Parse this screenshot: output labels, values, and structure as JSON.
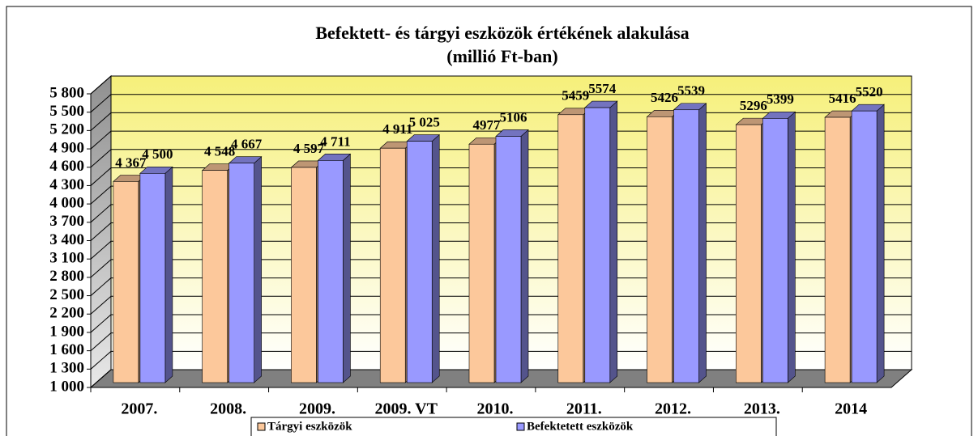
{
  "chart_data": {
    "type": "bar3d",
    "title": "Befektett- és tárgyi eszközök értékének alakulása",
    "subtitle": "(millió  Ft-ban)",
    "categories": [
      "2007.",
      "2008.",
      "2009.",
      "2009. VT",
      "2010.",
      "2011.",
      "2012.",
      "2013.",
      "2014"
    ],
    "series": [
      {
        "name": "Tárgyi eszközök",
        "color": "#fcc89b",
        "values": [
          4367,
          4548,
          4597,
          4911,
          4977,
          5459,
          5426,
          5296,
          5416
        ],
        "value_labels": [
          "4 367",
          "4 548",
          "4 597",
          "4 911",
          "4977",
          "5459",
          "5426",
          "5296",
          "5416"
        ]
      },
      {
        "name": "Befektetett eszközök",
        "color": "#9999ff",
        "values": [
          4500,
          4667,
          4711,
          5025,
          5106,
          5574,
          5539,
          5399,
          5520
        ],
        "value_labels": [
          "4 500",
          "4 667",
          "4 711",
          "5 025",
          "5106",
          "5574",
          "5539",
          "5399",
          "5520"
        ]
      }
    ],
    "ylim": [
      1000,
      5800
    ],
    "yticks": [
      {
        "value": 1000,
        "label": "1 000"
      },
      {
        "value": 1300,
        "label": "1 300"
      },
      {
        "value": 1600,
        "label": "1 600"
      },
      {
        "value": 1900,
        "label": "1 900"
      },
      {
        "value": 2200,
        "label": "2 200"
      },
      {
        "value": 2500,
        "label": "2 500"
      },
      {
        "value": 2800,
        "label": "2 800"
      },
      {
        "value": 3100,
        "label": "3 100"
      },
      {
        "value": 3400,
        "label": "3 400"
      },
      {
        "value": 3700,
        "label": "3 700"
      },
      {
        "value": 4000,
        "label": "4 000"
      },
      {
        "value": 4300,
        "label": "4 300"
      },
      {
        "value": 4600,
        "label": "4 600"
      },
      {
        "value": 4900,
        "label": "4 900"
      },
      {
        "value": 5200,
        "label": "5 200"
      },
      {
        "value": 5500,
        "label": "5 500"
      },
      {
        "value": 5800,
        "label": "5 800"
      }
    ],
    "grid": true,
    "legend": "bottom"
  }
}
